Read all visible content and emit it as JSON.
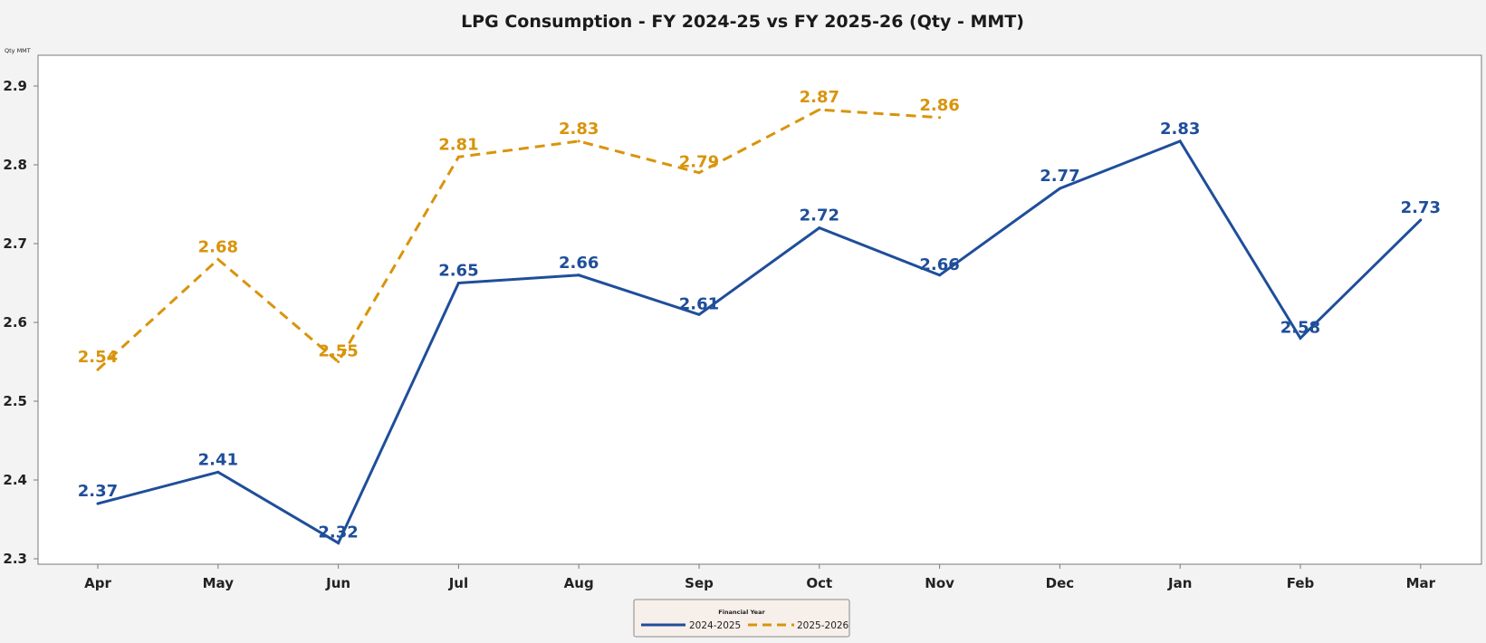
{
  "chart_data": {
    "type": "line",
    "title": "LPG Consumption - FY 2024-25 vs FY 2025-26 (Qty - MMT)",
    "xlabel": "",
    "ylabel": "Qty MMT",
    "categories": [
      "Apr",
      "May",
      "Jun",
      "Jul",
      "Aug",
      "Sep",
      "Oct",
      "Nov",
      "Dec",
      "Jan",
      "Feb",
      "Mar"
    ],
    "ylim": [
      2.29,
      2.93
    ],
    "yticks": [
      2.3,
      2.4,
      2.5,
      2.6,
      2.7,
      2.8,
      2.9
    ],
    "ytick_labels": [
      "2.3",
      "2.4",
      "2.5",
      "2.6",
      "2.7",
      "2.8",
      "2.9"
    ],
    "grid": false,
    "legend": {
      "title": "Financial Year",
      "placement": "bottom-center"
    },
    "series": [
      {
        "name": "2024-2025",
        "color": "#1f4e9a",
        "style": "solid",
        "values": [
          2.37,
          2.41,
          2.32,
          2.65,
          2.66,
          2.61,
          2.72,
          2.66,
          2.77,
          2.83,
          2.58,
          2.73
        ],
        "labels": [
          "2.37",
          "2.41",
          "2.32",
          "2.65",
          "2.66",
          "2.61",
          "2.72",
          "2.66",
          "2.77",
          "2.83",
          "2.58",
          "2.73"
        ]
      },
      {
        "name": "2025-2026",
        "color": "#d9940b",
        "style": "dashed",
        "values": [
          2.54,
          2.68,
          2.55,
          2.81,
          2.83,
          2.79,
          2.87,
          2.86,
          null,
          null,
          null,
          null
        ],
        "labels": [
          "2.54",
          "2.68",
          "2.55",
          "2.81",
          "2.83",
          "2.79",
          "2.87",
          "2.86",
          null,
          null,
          null,
          null
        ]
      }
    ]
  }
}
